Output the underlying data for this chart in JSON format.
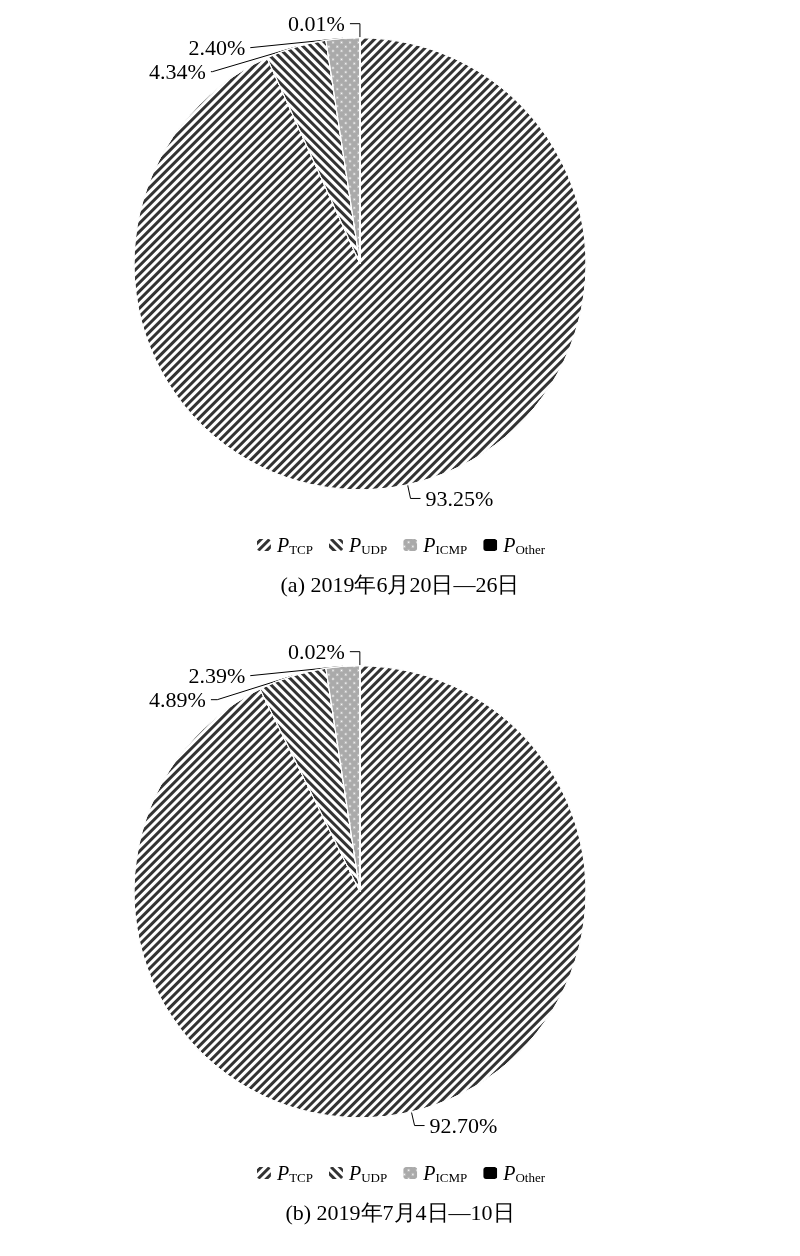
{
  "chart_data": [
    {
      "type": "pie",
      "title": "(a) 2019年6月20日—26日",
      "categories": [
        "P$_{TCP}$",
        "P$_{UDP}$",
        "P$_{ICMP}$",
        "P$_{Other}$"
      ],
      "values": [
        93.25,
        4.34,
        2.4,
        0.01
      ],
      "value_labels": [
        "93.25%",
        "4.34%",
        "2.40%",
        "0.01%"
      ],
      "colors": [
        "#333333",
        "#333333",
        "#aaaaaa",
        "#000000"
      ],
      "legend": "bottom"
    },
    {
      "type": "pie",
      "title": "(b) 2019年7月4日—10日",
      "categories": [
        "P$_{TCP}$",
        "P$_{UDP}$",
        "P$_{ICMP}$",
        "P$_{Other}$"
      ],
      "values": [
        92.7,
        4.89,
        2.39,
        0.02
      ],
      "value_labels": [
        "92.70%",
        "4.89%",
        "2.39%",
        "0.02%"
      ],
      "colors": [
        "#333333",
        "#333333",
        "#aaaaaa",
        "#000000"
      ],
      "legend": "bottom"
    }
  ]
}
